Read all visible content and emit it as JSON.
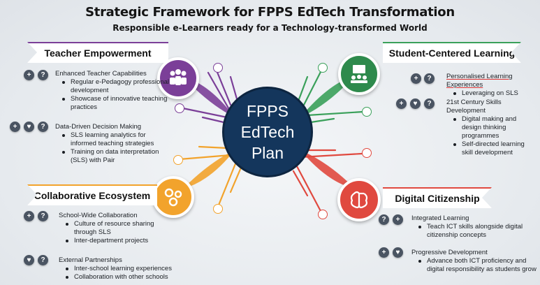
{
  "header": {
    "title": "Strategic Framework for FPPS EdTech Transformation",
    "subtitle": "Responsible e-Learners ready for a Technology-transformed World"
  },
  "center": {
    "line1": "FPPS",
    "line2": "EdTech",
    "line3": "Plan"
  },
  "colors": {
    "purple": "#7b3f98",
    "green": "#3aa05a",
    "orange": "#f2a32c",
    "red": "#e0493f",
    "navy": "#14365c"
  },
  "teacher": {
    "title": "Teacher Empowerment",
    "icon": "people-icon",
    "sections": [
      {
        "head": "Enhanced Teacher Capabilities",
        "items": [
          "Regular e-Pedagogy professional development",
          "Showcase of innovative teaching practices"
        ]
      },
      {
        "head": "Data-Driven Decision Making",
        "items": [
          "SLS learning analytics for informed teaching strategies",
          "Training on data interpretation (SLS) with Pair"
        ]
      }
    ]
  },
  "student": {
    "title": "Student-Centered Learning",
    "icon": "students-icon",
    "sections": [
      {
        "head": "Personalised Learning Experiences",
        "items": [
          "Leveraging on SLS"
        ]
      },
      {
        "head": "21st Century Skills Development",
        "items": [
          "Digital making and design thinking programmes",
          "Self-directed learning skill development"
        ]
      }
    ]
  },
  "collab": {
    "title": "Collaborative Ecosystem",
    "icon": "gears-icon",
    "sections": [
      {
        "head": "School-Wide Collaboration",
        "items": [
          "Culture of resource sharing through SLS",
          "Inter-department projects"
        ]
      },
      {
        "head": "External Partnerships",
        "items": [
          "Inter-school learning experiences",
          "Collaboration with other schools"
        ]
      }
    ]
  },
  "digital": {
    "title": "Digital Citizenship",
    "icon": "brain-icon",
    "sections": [
      {
        "head": "Integrated Learning",
        "items": [
          "Teach ICT skills alongside digital citizenship concepts"
        ]
      },
      {
        "head": "Progressive Development",
        "items": [
          "Advance both ICT proficiency and digital responsibility as students grow"
        ]
      }
    ]
  }
}
